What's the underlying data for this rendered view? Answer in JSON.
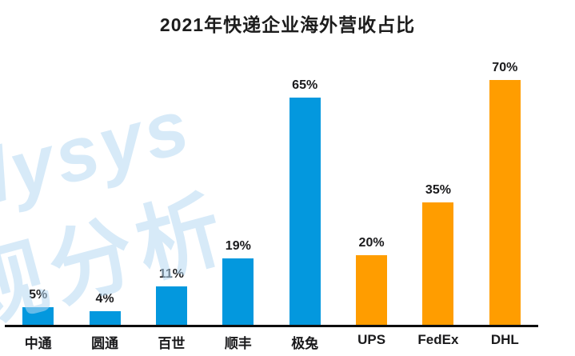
{
  "title": "2021年快递企业海外营收占比",
  "watermark": {
    "line1": "lysys",
    "line2": "观分析",
    "color": "#d9eaf8"
  },
  "colors": {
    "domestic_blue": "#0398de",
    "foreign_orange": "#ff9d00",
    "axis": "#0e0e0e",
    "text": "#1a1a1c"
  },
  "chart_data": {
    "type": "bar",
    "title": "2021年快递企业海外营收占比",
    "categories": [
      "中通",
      "圆通",
      "百世",
      "顺丰",
      "极兔",
      "UPS",
      "FedEx",
      "DHL"
    ],
    "values": [
      5,
      4,
      11,
      19,
      65,
      20,
      35,
      70
    ],
    "value_labels": [
      "5%",
      "4%",
      "11%",
      "19%",
      "65%",
      "20%",
      "35%",
      "70%"
    ],
    "series_colors": [
      "#0398de",
      "#0398de",
      "#0398de",
      "#0398de",
      "#0398de",
      "#ff9d00",
      "#ff9d00",
      "#ff9d00"
    ],
    "unit": "%",
    "xlabel": "",
    "ylabel": "",
    "ylim": [
      0,
      75
    ],
    "grid": false,
    "legend": "none",
    "data_labels": "above-bars",
    "baseline_axis": "x-only"
  }
}
